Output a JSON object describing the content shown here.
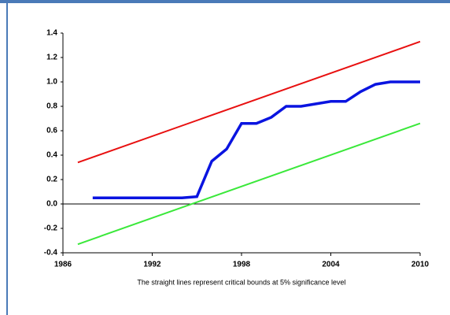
{
  "chart_data": {
    "type": "line",
    "caption": "The straight lines represent critical bounds at 5% significance level",
    "xlim": [
      1986,
      2010
    ],
    "xticks": [
      1986,
      1992,
      1998,
      2004,
      2010
    ],
    "ylim": [
      -0.4,
      1.4
    ],
    "yticks": [
      -0.4,
      -0.2,
      {
        "value": 0,
        "label": "0.0"
      },
      0.2,
      0.4,
      0.6,
      0.8,
      {
        "value": 1,
        "label": "1.0"
      },
      1.2,
      1.4
    ],
    "series": [
      {
        "color": "#e81010",
        "x": [
          1987,
          2010
        ],
        "values": [
          0.34,
          1.33
        ]
      },
      {
        "color": "#3ae83a",
        "x": [
          1987,
          2010
        ],
        "values": [
          -0.33,
          0.66
        ]
      },
      {
        "color": "#0a14e0",
        "x": [
          1988,
          1989,
          1990,
          1991,
          1992,
          1993,
          1994,
          1995,
          1996,
          1997,
          1998,
          1999,
          2000,
          2001,
          2002,
          2003,
          2004,
          2005,
          2006,
          2007,
          2008,
          2009,
          2010
        ],
        "values": [
          0.05,
          0.05,
          0.05,
          0.05,
          0.05,
          0.05,
          0.05,
          0.06,
          0.35,
          0.45,
          0.66,
          0.66,
          0.71,
          0.8,
          0.8,
          0.82,
          0.84,
          0.84,
          0.92,
          0.98,
          1.0,
          1.0,
          1.0
        ]
      }
    ]
  }
}
